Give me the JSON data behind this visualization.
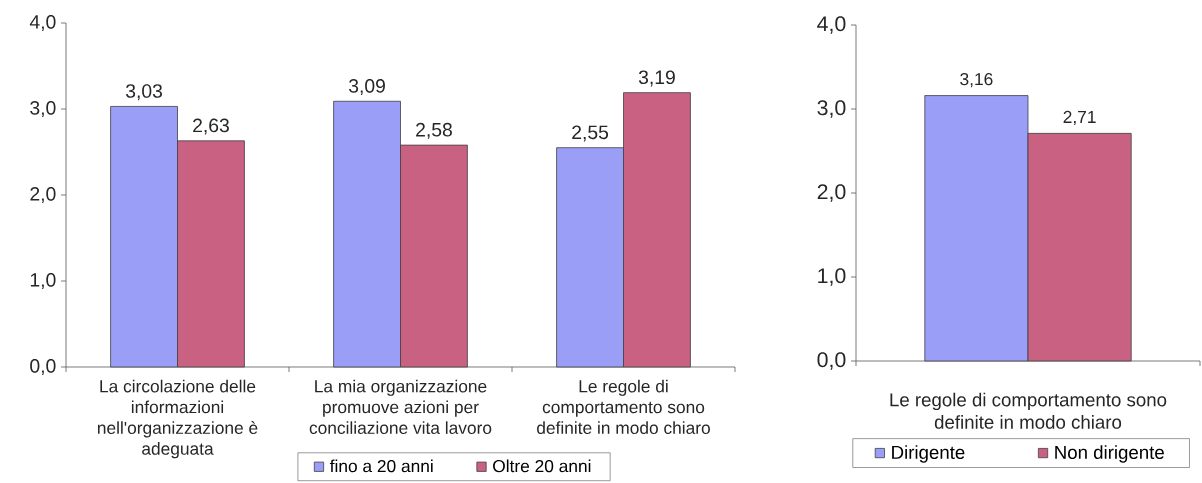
{
  "chart_data": [
    {
      "type": "bar",
      "categories": [
        "La circolazione delle informazioni nell'organizzazione è adeguata",
        "La mia organizzazione promuove azioni per conciliazione vita lavoro",
        "Le regole di comportamento sono definite in modo chiaro"
      ],
      "series": [
        {
          "name": "fino a 20 anni",
          "color": "#9b9ef7",
          "values": [
            3.03,
            3.09,
            2.55
          ],
          "value_labels": [
            "3,03",
            "3,09",
            "2,55"
          ]
        },
        {
          "name": "Oltre 20 anni",
          "color": "#c96282",
          "values": [
            2.63,
            2.58,
            3.19
          ],
          "value_labels": [
            "2,63",
            "2,58",
            "3,19"
          ]
        }
      ],
      "ylim": [
        0,
        4
      ],
      "yticks": [
        {
          "value": 0,
          "label": "0,0"
        },
        {
          "value": 1,
          "label": "1,0"
        },
        {
          "value": 2,
          "label": "2,0"
        },
        {
          "value": 3,
          "label": "3,0"
        },
        {
          "value": 4,
          "label": "4,0"
        }
      ],
      "legend": "bottom"
    },
    {
      "type": "bar",
      "categories": [
        "Le regole di comportamento sono definite in modo chiaro"
      ],
      "series": [
        {
          "name": "Dirigente",
          "color": "#9b9ef7",
          "values": [
            3.16
          ],
          "value_labels": [
            "3,16"
          ]
        },
        {
          "name": "Non dirigente",
          "color": "#c96282",
          "values": [
            2.71
          ],
          "value_labels": [
            "2,71"
          ]
        }
      ],
      "ylim": [
        0,
        4
      ],
      "yticks": [
        {
          "value": 0,
          "label": "0,0"
        },
        {
          "value": 1,
          "label": "1,0"
        },
        {
          "value": 2,
          "label": "2,0"
        },
        {
          "value": 3,
          "label": "3,0"
        },
        {
          "value": 4,
          "label": "4,0"
        }
      ],
      "legend": "bottom"
    }
  ]
}
